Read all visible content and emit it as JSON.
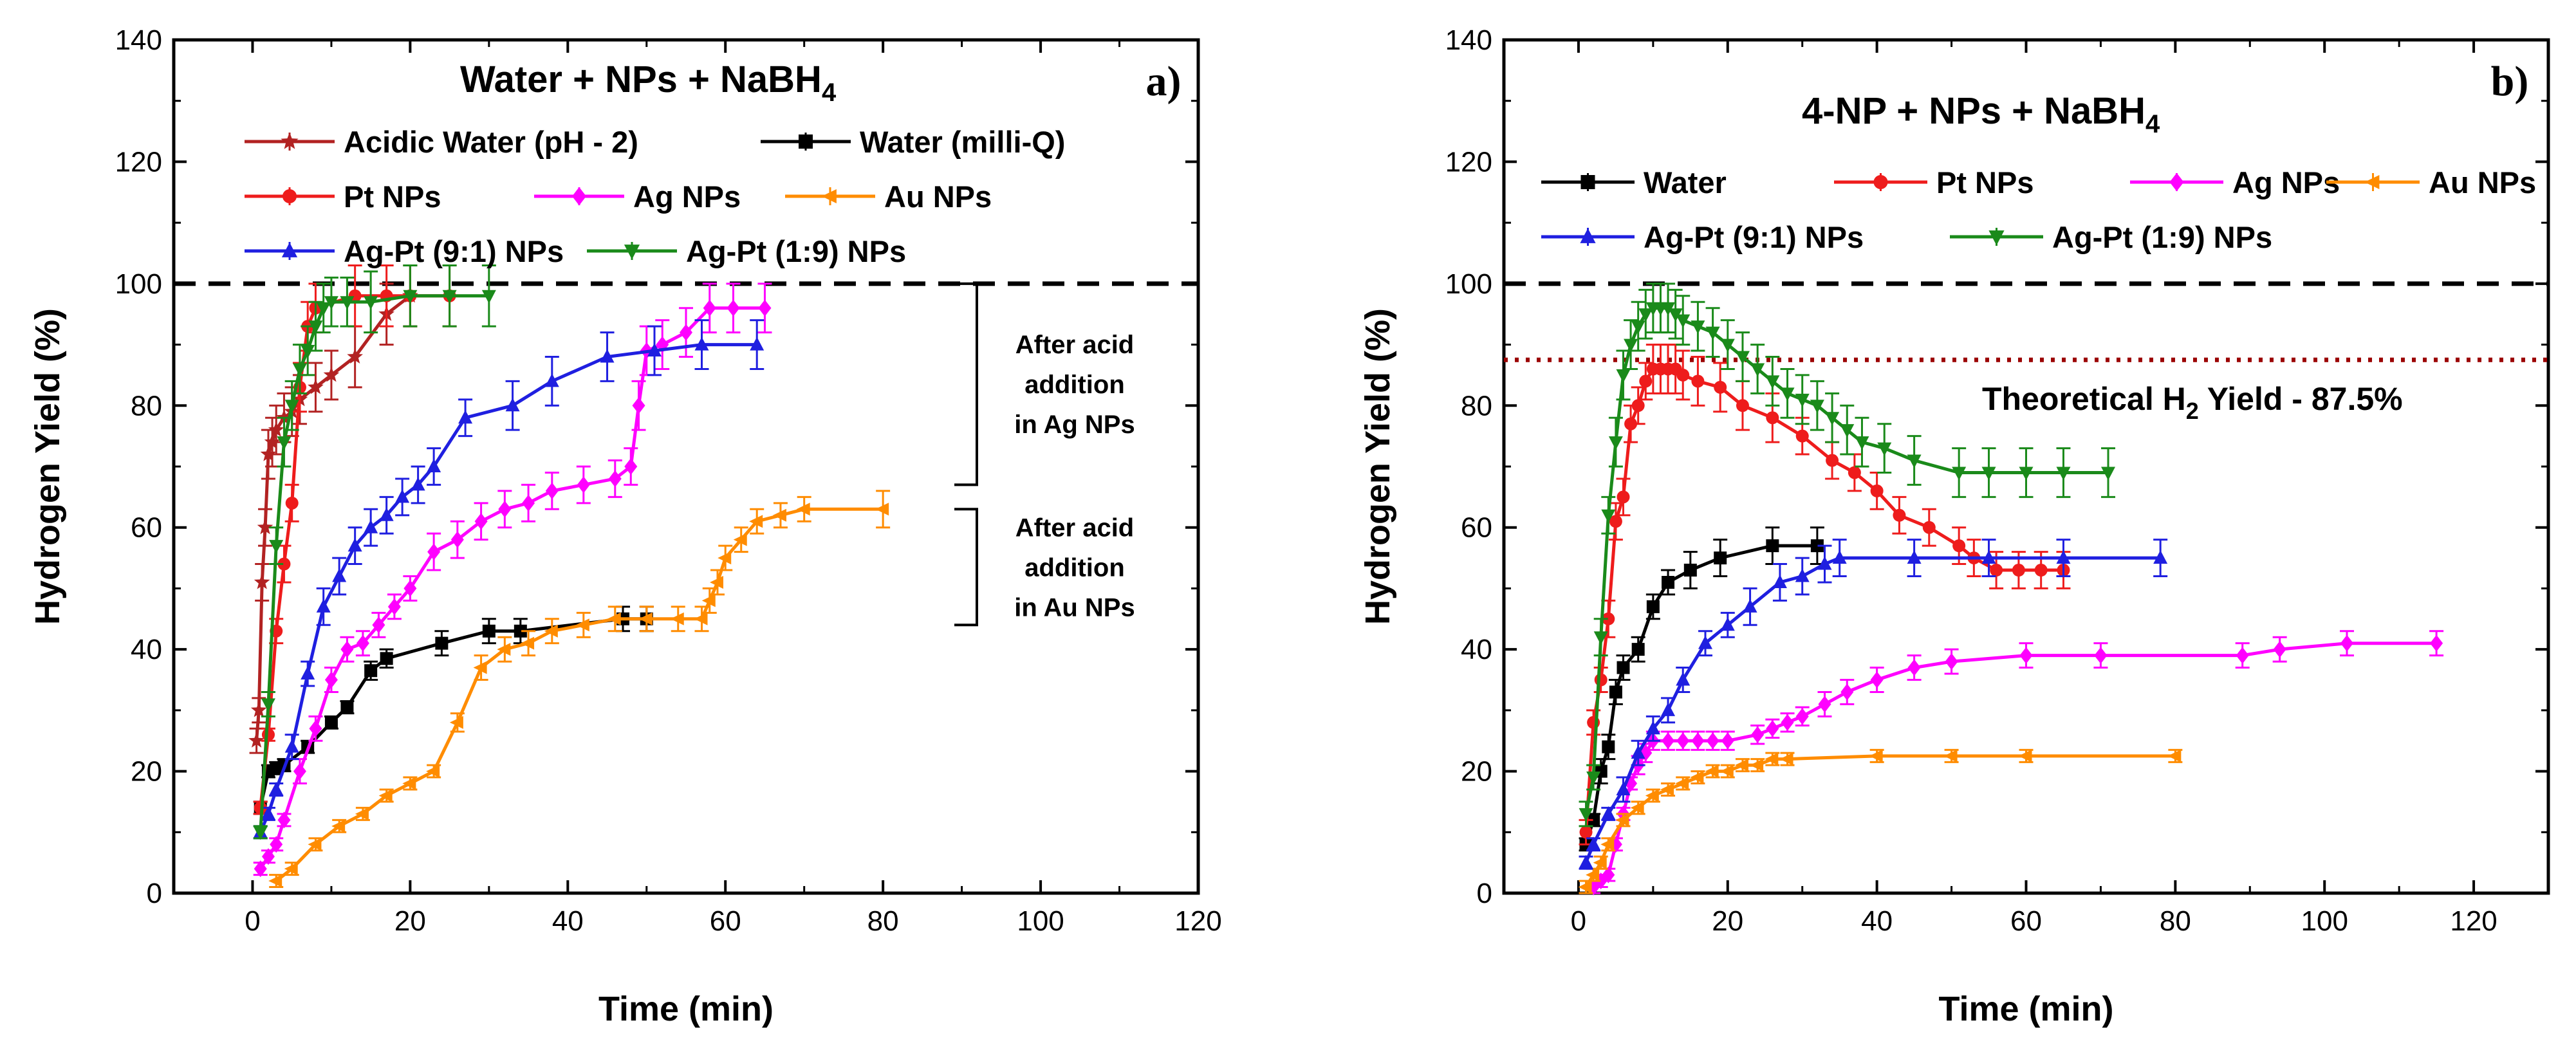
{
  "chart_data": [
    {
      "type": "line",
      "panel_label": "a)",
      "title": "Water + NPs + NaBH",
      "title_subscript": "4",
      "xlabel": "Time (min)",
      "ylabel": "Hydrogen Yield (%)",
      "xlim": [
        -10,
        120
      ],
      "ylim": [
        0,
        140
      ],
      "xticks": [
        0,
        20,
        40,
        60,
        80,
        100,
        120
      ],
      "yticks": [
        0,
        20,
        40,
        60,
        80,
        100,
        120,
        140
      ],
      "reference_line": 100,
      "annotations": [
        {
          "lines": [
            "After acid",
            "addition",
            "in Ag NPs"
          ],
          "y_range": [
            67,
            100
          ]
        },
        {
          "lines": [
            "After acid",
            "addition",
            "in Au NPs"
          ],
          "y_range": [
            44,
            63
          ]
        }
      ],
      "series": [
        {
          "name": "Acidic Water (pH - 2)",
          "color": "#b22222",
          "marker": "star",
          "x": [
            0.5,
            0.8,
            1.2,
            1.6,
            2,
            2.5,
            3,
            4,
            5,
            6,
            8,
            10,
            13,
            17,
            20
          ],
          "y": [
            25,
            30,
            51,
            60,
            72,
            74,
            76,
            78,
            79,
            81,
            83,
            85,
            88,
            95,
            98
          ],
          "err": [
            2,
            2,
            3,
            3,
            4,
            4,
            4,
            4,
            4,
            4,
            4,
            4,
            5,
            5,
            5
          ]
        },
        {
          "name": "Water (milli-Q)",
          "color": "#000000",
          "marker": "square",
          "x": [
            1,
            2,
            3,
            4,
            7,
            10,
            12,
            15,
            17,
            24,
            30,
            34,
            47,
            50
          ],
          "y": [
            14,
            20,
            20.5,
            21,
            24,
            28,
            30.5,
            36.5,
            38.5,
            41,
            43,
            43,
            45,
            45
          ],
          "err": [
            1,
            1,
            1,
            1,
            1,
            1,
            1,
            1.5,
            1.5,
            2,
            2,
            2,
            2,
            2
          ]
        },
        {
          "name": "Pt NPs",
          "color": "#ee1c1c",
          "marker": "circle",
          "x": [
            1,
            2,
            3,
            4,
            5,
            6,
            7,
            8,
            13,
            17,
            20,
            25
          ],
          "y": [
            14,
            26,
            43,
            54,
            64,
            83,
            93,
            96,
            98,
            98,
            98,
            98
          ],
          "err": [
            1,
            1,
            2,
            3,
            3,
            4,
            4,
            4,
            5,
            5,
            5,
            5
          ]
        },
        {
          "name": "Ag NPs",
          "color": "#ff00ff",
          "marker": "diamond",
          "x": [
            1,
            2,
            3,
            4,
            6,
            8,
            10,
            12,
            14,
            16,
            18,
            20,
            23,
            26,
            29,
            32,
            35,
            38,
            42,
            46,
            48,
            49,
            50,
            52,
            55,
            58,
            61,
            65
          ],
          "y": [
            4,
            6,
            8,
            12,
            20,
            27,
            35,
            40,
            41,
            44,
            47,
            50,
            56,
            58,
            61,
            63,
            64,
            66,
            67,
            68,
            70,
            80,
            89,
            90,
            92,
            96,
            96,
            96
          ],
          "err": [
            1,
            1,
            1,
            1,
            2,
            2,
            2,
            2,
            2,
            2,
            2,
            2,
            3,
            3,
            3,
            3,
            3,
            3,
            3,
            3,
            3,
            4,
            4,
            4,
            4,
            4,
            4,
            4
          ]
        },
        {
          "name": "Au NPs",
          "color": "#ff8c00",
          "marker": "tri-left",
          "x": [
            3,
            5,
            8,
            11,
            14,
            17,
            20,
            23,
            26,
            29,
            32,
            35,
            38,
            42,
            46,
            50,
            54,
            57,
            58,
            59,
            60,
            62,
            64,
            67,
            70,
            80
          ],
          "y": [
            2,
            4,
            8,
            11,
            13,
            16,
            18,
            20,
            28,
            37,
            40,
            41,
            43,
            44,
            45,
            45,
            45,
            45,
            48,
            51,
            55,
            58,
            61,
            62,
            63,
            63
          ],
          "err": [
            1,
            1,
            1,
            1,
            1,
            1,
            1,
            1,
            1.5,
            2,
            2,
            2,
            2,
            2,
            2,
            2,
            2,
            2,
            2,
            2,
            2,
            2,
            2,
            2,
            2,
            3
          ]
        },
        {
          "name": "Ag-Pt (9:1) NPs",
          "color": "#1f1fe0",
          "marker": "triangle-up",
          "x": [
            1,
            2,
            3,
            5,
            7,
            9,
            11,
            13,
            15,
            17,
            19,
            21,
            23,
            27,
            33,
            38,
            45,
            51,
            57,
            64
          ],
          "y": [
            10,
            13,
            17,
            24,
            36,
            47,
            52,
            57,
            60,
            62,
            65,
            67,
            70,
            78,
            80,
            84,
            88,
            89,
            90,
            90
          ],
          "err": [
            1,
            1,
            1,
            2,
            2,
            3,
            3,
            3,
            3,
            3,
            3,
            3,
            3,
            3,
            4,
            4,
            4,
            4,
            4,
            4
          ]
        },
        {
          "name": "Ag-Pt (1:9) NPs",
          "color": "#1a8a1a",
          "marker": "triangle-down",
          "x": [
            1,
            2,
            3,
            4,
            5,
            6,
            7,
            8,
            9,
            10,
            12,
            15,
            20,
            25,
            30
          ],
          "y": [
            10,
            31,
            57,
            74,
            80,
            86,
            89,
            93,
            96,
            97,
            97,
            97,
            98,
            98,
            98
          ],
          "err": [
            1,
            2,
            3,
            4,
            4,
            4,
            4,
            4,
            4,
            4,
            4,
            5,
            5,
            5,
            5
          ]
        }
      ],
      "legend": [
        [
          "Acidic Water (pH - 2)",
          "Water (milli-Q)"
        ],
        [
          "Pt NPs",
          "Ag NPs",
          "Au NPs"
        ],
        [
          "Ag-Pt (9:1) NPs",
          "Ag-Pt (1:9) NPs"
        ]
      ]
    },
    {
      "type": "line",
      "panel_label": "b)",
      "title": "4-NP + NPs + NaBH",
      "title_subscript": "4",
      "xlabel": "Time (min)",
      "ylabel": "Hydrogen Yield (%)",
      "xlim": [
        -10,
        130
      ],
      "ylim": [
        0,
        140
      ],
      "xticks": [
        0,
        20,
        40,
        60,
        80,
        100,
        120
      ],
      "yticks": [
        0,
        20,
        40,
        60,
        80,
        100,
        120,
        140
      ],
      "reference_line": 100,
      "theoretical_line": 87.5,
      "theoretical_label": "Theoretical H",
      "theoretical_label_sub": "2",
      "theoretical_label_suffix": " Yield - 87.5%",
      "series": [
        {
          "name": "Water",
          "color": "#000000",
          "marker": "square",
          "x": [
            1,
            2,
            3,
            4,
            5,
            6,
            8,
            10,
            12,
            15,
            19,
            26,
            32
          ],
          "y": [
            8,
            12,
            20,
            24,
            33,
            37,
            40,
            47,
            51,
            53,
            55,
            57,
            57
          ],
          "err": [
            1,
            1,
            2,
            2,
            2,
            2,
            2,
            2,
            2,
            3,
            3,
            3,
            3
          ]
        },
        {
          "name": "Pt NPs",
          "color": "#ee1c1c",
          "marker": "circle",
          "x": [
            1,
            2,
            3,
            4,
            5,
            6,
            7,
            8,
            9,
            10,
            11,
            12,
            13,
            14,
            16,
            19,
            22,
            26,
            30,
            34,
            37,
            40,
            43,
            47,
            51,
            53,
            56,
            59,
            62,
            65
          ],
          "y": [
            10,
            28,
            35,
            45,
            61,
            65,
            77,
            80,
            84,
            86,
            86,
            86,
            86,
            85,
            84,
            83,
            80,
            78,
            75,
            71,
            69,
            66,
            62,
            60,
            57,
            55,
            53,
            53,
            53,
            53
          ],
          "err": [
            2,
            2,
            2,
            3,
            3,
            3,
            3,
            3,
            3,
            4,
            4,
            4,
            4,
            4,
            4,
            4,
            4,
            4,
            3,
            3,
            3,
            3,
            3,
            3,
            3,
            3,
            3,
            3,
            3,
            3
          ]
        },
        {
          "name": "Ag NPs",
          "color": "#ff00ff",
          "marker": "diamond",
          "x": [
            2,
            3,
            4,
            5,
            6,
            7,
            8,
            9,
            10,
            12,
            14,
            16,
            18,
            20,
            24,
            26,
            28,
            30,
            33,
            36,
            40,
            45,
            50,
            60,
            70,
            89,
            94,
            103,
            115
          ],
          "y": [
            1,
            2,
            3,
            8,
            13,
            18,
            21,
            23,
            25,
            25,
            25,
            25,
            25,
            25,
            26,
            27,
            28,
            29,
            31,
            33,
            35,
            37,
            38,
            39,
            39,
            39,
            40,
            41,
            41
          ],
          "err": [
            1,
            1,
            1,
            1,
            1,
            1,
            1.5,
            1.5,
            1.5,
            1.5,
            1.5,
            1.5,
            1.5,
            1.5,
            1.5,
            1.5,
            1.5,
            1.5,
            2,
            2,
            2,
            2,
            2,
            2,
            2,
            2,
            2,
            2,
            2
          ]
        },
        {
          "name": "Au NPs",
          "color": "#ff8c00",
          "marker": "tri-left",
          "x": [
            1,
            2,
            3,
            4,
            6,
            8,
            10,
            12,
            14,
            16,
            18,
            20,
            22,
            24,
            26,
            28,
            40,
            50,
            60,
            80
          ],
          "y": [
            1,
            3,
            5,
            8,
            12,
            14,
            16,
            17,
            18,
            19,
            20,
            20,
            21,
            21,
            22,
            22,
            22.5,
            22.5,
            22.5,
            22.5
          ],
          "err": [
            1,
            1,
            1,
            1,
            1,
            1,
            1,
            1,
            1,
            1,
            1,
            1,
            1,
            1,
            1,
            1,
            1,
            1,
            1,
            1
          ]
        },
        {
          "name": "Ag-Pt (9:1) NPs",
          "color": "#1f1fe0",
          "marker": "triangle-up",
          "x": [
            1,
            2,
            4,
            6,
            8,
            10,
            12,
            14,
            17,
            20,
            23,
            27,
            30,
            33,
            35,
            45,
            55,
            65,
            78
          ],
          "y": [
            5,
            8,
            13,
            17,
            23,
            27,
            30,
            35,
            41,
            44,
            47,
            51,
            52,
            54,
            55,
            55,
            55,
            55,
            55
          ],
          "err": [
            1,
            1,
            1,
            2,
            2,
            2,
            2,
            2,
            2,
            2,
            3,
            3,
            3,
            3,
            3,
            3,
            3,
            3,
            3
          ]
        },
        {
          "name": "Ag-Pt (1:9) NPs",
          "color": "#1a8a1a",
          "marker": "triangle-down",
          "x": [
            1,
            2,
            3,
            4,
            5,
            6,
            7,
            8,
            9,
            10,
            11,
            12,
            13,
            14,
            16,
            18,
            20,
            22,
            24,
            26,
            28,
            30,
            32,
            34,
            36,
            38,
            41,
            45,
            51,
            55,
            60,
            65,
            71
          ],
          "y": [
            13,
            19,
            42,
            62,
            74,
            85,
            90,
            93,
            95,
            96,
            96,
            96,
            95,
            94,
            93,
            92,
            90,
            88,
            86,
            84,
            82,
            81,
            80,
            78,
            76,
            74,
            73,
            71,
            69,
            69,
            69,
            69,
            69
          ],
          "err": [
            2,
            2,
            3,
            3,
            4,
            4,
            4,
            4,
            4,
            4,
            4,
            4,
            4,
            4,
            4,
            4,
            4,
            4,
            4,
            4,
            4,
            4,
            4,
            4,
            4,
            4,
            4,
            4,
            4,
            4,
            4,
            4,
            4
          ]
        }
      ],
      "legend": [
        [
          "Water",
          "Pt NPs",
          "Ag NPs",
          "Au NPs"
        ],
        [
          "Ag-Pt (9:1) NPs",
          "Ag-Pt (1:9) NPs"
        ]
      ]
    }
  ]
}
